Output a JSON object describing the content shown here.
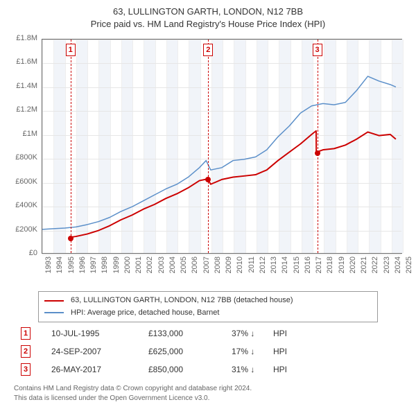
{
  "title_line1": "63, LULLINGTON GARTH, LONDON, N12 7BB",
  "title_line2": "Price paid vs. HM Land Registry's House Price Index (HPI)",
  "chart": {
    "type": "line",
    "background_color": "#ffffff",
    "panel_band_color": "#f1f4f9",
    "grid_color": "#e6e6e6",
    "axis_color": "#666666",
    "label_fontsize": 11,
    "x": {
      "min": 1993,
      "max": 2025,
      "ticks": [
        1993,
        1994,
        1995,
        1996,
        1997,
        1998,
        1999,
        2000,
        2001,
        2002,
        2003,
        2004,
        2005,
        2006,
        2007,
        2008,
        2009,
        2010,
        2011,
        2012,
        2013,
        2014,
        2015,
        2016,
        2017,
        2018,
        2019,
        2020,
        2021,
        2022,
        2023,
        2024,
        2025
      ]
    },
    "y": {
      "min": 0,
      "max": 1800000,
      "ticks": [
        0,
        200000,
        400000,
        600000,
        800000,
        1000000,
        1200000,
        1400000,
        1600000,
        1800000
      ],
      "tick_labels": [
        "£0",
        "£200K",
        "£400K",
        "£600K",
        "£800K",
        "£1M",
        "£1.2M",
        "£1.4M",
        "£1.6M",
        "£1.8M"
      ]
    },
    "series": [
      {
        "name": "63, LULLINGTON GARTH, LONDON, N12 7BB (detached house)",
        "color": "#cc0000",
        "line_width": 2,
        "points": [
          [
            1995.5,
            133000
          ],
          [
            1996,
            140000
          ],
          [
            1997,
            160000
          ],
          [
            1998,
            190000
          ],
          [
            1999,
            230000
          ],
          [
            2000,
            280000
          ],
          [
            2001,
            320000
          ],
          [
            2002,
            370000
          ],
          [
            2003,
            410000
          ],
          [
            2004,
            460000
          ],
          [
            2005,
            500000
          ],
          [
            2006,
            550000
          ],
          [
            2007,
            610000
          ],
          [
            2007.73,
            625000
          ],
          [
            2008,
            580000
          ],
          [
            2008.5,
            600000
          ],
          [
            2009,
            620000
          ],
          [
            2010,
            640000
          ],
          [
            2011,
            650000
          ],
          [
            2012,
            660000
          ],
          [
            2013,
            700000
          ],
          [
            2014,
            780000
          ],
          [
            2015,
            850000
          ],
          [
            2016,
            920000
          ],
          [
            2017,
            1000000
          ],
          [
            2017.4,
            1030000
          ],
          [
            2017.41,
            850000
          ],
          [
            2018,
            870000
          ],
          [
            2019,
            880000
          ],
          [
            2020,
            910000
          ],
          [
            2021,
            960000
          ],
          [
            2022,
            1020000
          ],
          [
            2023,
            990000
          ],
          [
            2024,
            1000000
          ],
          [
            2024.5,
            960000
          ]
        ],
        "markers": [
          [
            1995.5,
            133000
          ],
          [
            2007.73,
            625000
          ],
          [
            2017.4,
            850000
          ]
        ]
      },
      {
        "name": "HPI: Average price, detached house, Barnet",
        "color": "#5b8fc9",
        "line_width": 1.5,
        "points": [
          [
            1993,
            200000
          ],
          [
            1994,
            205000
          ],
          [
            1995,
            210000
          ],
          [
            1996,
            220000
          ],
          [
            1997,
            240000
          ],
          [
            1998,
            265000
          ],
          [
            1999,
            300000
          ],
          [
            2000,
            350000
          ],
          [
            2001,
            390000
          ],
          [
            2002,
            440000
          ],
          [
            2003,
            490000
          ],
          [
            2004,
            540000
          ],
          [
            2005,
            580000
          ],
          [
            2006,
            640000
          ],
          [
            2007,
            720000
          ],
          [
            2007.6,
            780000
          ],
          [
            2008,
            700000
          ],
          [
            2009,
            720000
          ],
          [
            2010,
            780000
          ],
          [
            2011,
            790000
          ],
          [
            2012,
            810000
          ],
          [
            2013,
            870000
          ],
          [
            2014,
            980000
          ],
          [
            2015,
            1070000
          ],
          [
            2016,
            1180000
          ],
          [
            2017,
            1240000
          ],
          [
            2018,
            1260000
          ],
          [
            2019,
            1250000
          ],
          [
            2020,
            1270000
          ],
          [
            2021,
            1370000
          ],
          [
            2022,
            1490000
          ],
          [
            2023,
            1450000
          ],
          [
            2024,
            1420000
          ],
          [
            2024.5,
            1400000
          ]
        ]
      }
    ],
    "event_lines": [
      {
        "id": "1",
        "x": 1995.5
      },
      {
        "id": "2",
        "x": 2007.73
      },
      {
        "id": "3",
        "x": 2017.4
      }
    ]
  },
  "legend": {
    "items": [
      {
        "color": "#cc0000",
        "label": "63, LULLINGTON GARTH, LONDON, N12 7BB (detached house)"
      },
      {
        "color": "#5b8fc9",
        "label": "HPI: Average price, detached house, Barnet"
      }
    ]
  },
  "events": [
    {
      "id": "1",
      "date": "10-JUL-1995",
      "price": "£133,000",
      "pct": "37%",
      "arrow": "↓",
      "suffix": "HPI"
    },
    {
      "id": "2",
      "date": "24-SEP-2007",
      "price": "£625,000",
      "pct": "17%",
      "arrow": "↓",
      "suffix": "HPI"
    },
    {
      "id": "3",
      "date": "26-MAY-2017",
      "price": "£850,000",
      "pct": "31%",
      "arrow": "↓",
      "suffix": "HPI"
    }
  ],
  "footnote_l1": "Contains HM Land Registry data © Crown copyright and database right 2024.",
  "footnote_l2": "This data is licensed under the Open Government Licence v3.0."
}
